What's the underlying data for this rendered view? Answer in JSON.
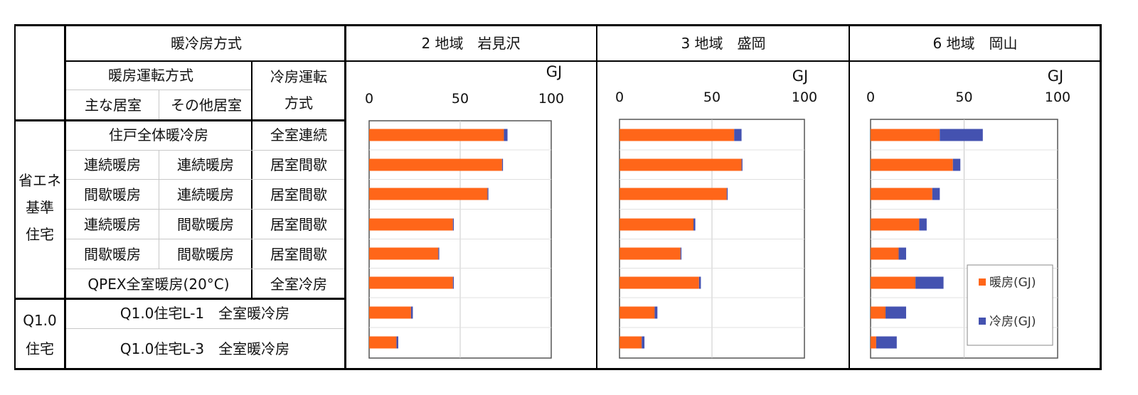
{
  "header": {
    "system_title": "暖冷房方式",
    "heating_mode_title": "暖房運転方式",
    "main_room": "主な居室",
    "other_room": "その他居室",
    "cooling_mode_title_1": "冷房運転",
    "cooling_mode_title_2": "方式"
  },
  "groups": [
    {
      "label_lines": [
        "省エネ",
        "基準",
        "住宅"
      ]
    },
    {
      "label_lines": [
        "Q1.0",
        "住宅"
      ]
    }
  ],
  "rows": [
    {
      "main": "住戸全体暖冷房",
      "other": "",
      "span": true,
      "cooling": "全室連続"
    },
    {
      "main": "連続暖房",
      "other": "連続暖房",
      "span": false,
      "cooling": "居室間歇"
    },
    {
      "main": "間歇暖房",
      "other": "連続暖房",
      "span": false,
      "cooling": "居室間歇"
    },
    {
      "main": "連続暖房",
      "other": "間歇暖房",
      "span": false,
      "cooling": "居室間歇"
    },
    {
      "main": "間歇暖房",
      "other": "間歇暖房",
      "span": false,
      "cooling": "居室間歇"
    },
    {
      "main": "QPEX全室暖房(20°C)",
      "other": "",
      "span": true,
      "cooling": "全室冷房"
    },
    {
      "main": "Q1.0住宅L-1　全室暖冷房",
      "other": "",
      "span": true,
      "cooling": ""
    },
    {
      "main": "Q1.0住宅L-3　全室暖冷房",
      "other": "",
      "span": true,
      "cooling": ""
    }
  ],
  "colors": {
    "heating": "#ff6619",
    "cooling": "#4452b0",
    "grid": "#c8c8c8",
    "border": "#000000"
  },
  "chart_data": [
    {
      "type": "bar",
      "title": "2 地域　岩見沢",
      "unit": "GJ",
      "xlim": [
        0,
        100
      ],
      "ticks": [
        0,
        50,
        100
      ],
      "series": [
        {
          "name": "暖房(GJ)",
          "values": [
            74,
            73,
            65,
            46,
            38,
            46,
            23,
            15
          ]
        },
        {
          "name": "冷房(GJ)",
          "values": [
            2,
            0.5,
            0.5,
            0.5,
            0.5,
            0.5,
            1,
            1
          ]
        }
      ]
    },
    {
      "type": "bar",
      "title": "3 地域　盛岡",
      "unit": "GJ",
      "xlim": [
        0,
        100
      ],
      "ticks": [
        0,
        50,
        100
      ],
      "series": [
        {
          "name": "暖房(GJ)",
          "values": [
            62,
            66,
            58,
            40,
            33,
            43,
            19,
            12
          ]
        },
        {
          "name": "冷房(GJ)",
          "values": [
            4,
            0.5,
            0.5,
            1,
            0.5,
            1,
            1.5,
            1.5
          ]
        }
      ]
    },
    {
      "type": "bar",
      "title": "6 地域　岡山",
      "unit": "GJ",
      "xlim": [
        0,
        100
      ],
      "ticks": [
        0,
        50,
        100
      ],
      "legend": {
        "position": "bottom-right",
        "entries": [
          "暖房(GJ)",
          "冷房(GJ)"
        ]
      },
      "series": [
        {
          "name": "暖房(GJ)",
          "values": [
            37,
            44,
            33,
            26,
            15,
            24,
            8,
            3
          ]
        },
        {
          "name": "冷房(GJ)",
          "values": [
            23,
            4,
            4,
            4,
            4,
            15,
            11,
            11
          ]
        }
      ]
    }
  ]
}
